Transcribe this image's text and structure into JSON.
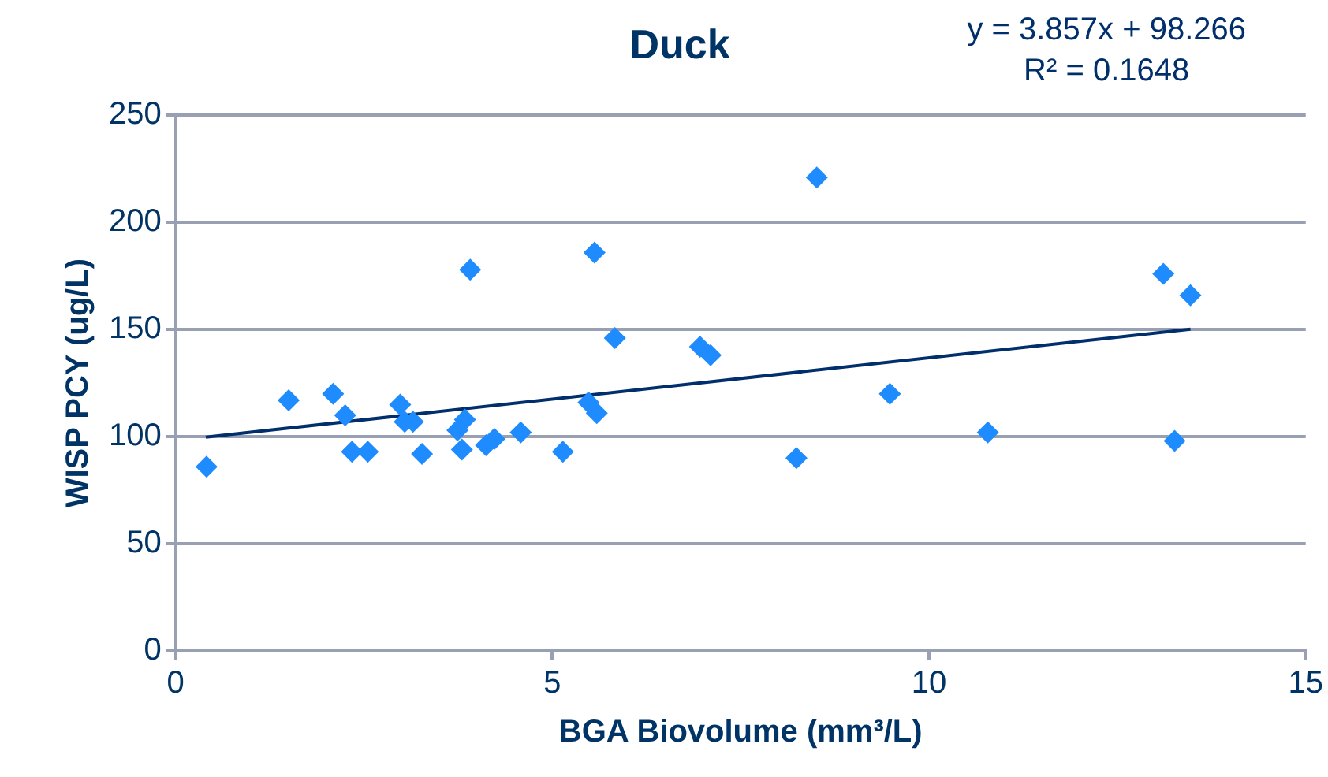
{
  "chart_data": {
    "type": "scatter",
    "title": "Duck",
    "xlabel": "BGA Biovolume (mm³/L)",
    "ylabel": "WISP PCY (ug/L)",
    "annotations": [
      "y = 3.857x + 98.266",
      "R² = 0.1648"
    ],
    "xlim": [
      0,
      15
    ],
    "xticks": [
      0,
      5,
      10,
      15
    ],
    "ylim": [
      0,
      250
    ],
    "yticks": [
      0,
      50,
      100,
      150,
      200,
      250
    ],
    "grid": "y",
    "legend": false,
    "marker": "diamond",
    "series": [
      {
        "type": "scatter",
        "color": "#1e8cff",
        "x": [
          0.41,
          1.5,
          2.09,
          2.25,
          2.34,
          2.55,
          2.98,
          3.04,
          3.15,
          3.27,
          3.91,
          3.8,
          3.84,
          3.74,
          4.12,
          4.23,
          4.58,
          5.14,
          5.56,
          5.48,
          5.59,
          5.83,
          6.96,
          7.1,
          8.24,
          8.51,
          9.48,
          10.78,
          13.11,
          13.26,
          13.47
        ],
        "values": [
          86,
          117,
          120,
          110,
          93,
          93,
          115,
          107,
          107,
          92,
          178,
          94,
          108,
          103,
          96,
          99,
          102,
          93,
          186,
          116,
          111,
          146,
          142,
          138,
          90,
          221,
          120,
          102,
          176,
          98,
          166
        ]
      },
      {
        "type": "line",
        "marker": "none",
        "color": "#002f6c",
        "x": [
          0.4,
          13.47
        ],
        "values": [
          99.8,
          150.2
        ]
      }
    ]
  }
}
